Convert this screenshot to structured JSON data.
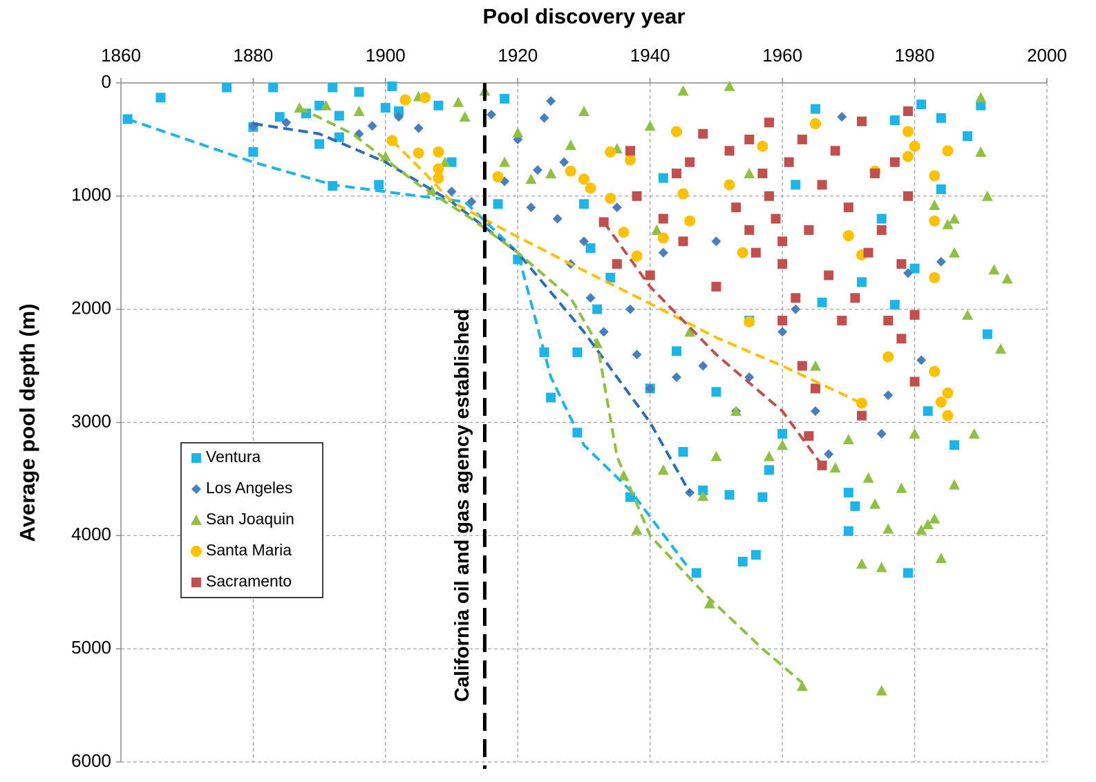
{
  "chart_data": {
    "type": "scatter",
    "xlabel": "Pool discovery year",
    "ylabel": "Average pool depth (m)",
    "xlim": [
      1860,
      2000
    ],
    "xticks": [
      1860,
      1880,
      1900,
      1920,
      1940,
      1960,
      1980,
      2000
    ],
    "ylim": [
      0,
      6000
    ],
    "yticks": [
      0,
      1000,
      2000,
      3000,
      4000,
      5000,
      6000
    ],
    "y_inverted": true,
    "x_axis_position": "top",
    "grid": true,
    "legend": "left",
    "annotation": {
      "text": "California oil and gas agency established",
      "x": 1915
    },
    "series": [
      {
        "name": "Ventura",
        "color": "#1fb4e8",
        "marker": "square",
        "x": [
          1861,
          1866,
          1876,
          1880,
          1880,
          1883,
          1884,
          1888,
          1890,
          1890,
          1892,
          1892,
          1893,
          1893,
          1896,
          1899,
          1900,
          1901,
          1902,
          1908,
          1910,
          1917,
          1918,
          1920,
          1924,
          1925,
          1929,
          1929,
          1930,
          1931,
          1932,
          1934,
          1937,
          1942,
          1944,
          1945,
          1947,
          1948,
          1950,
          1952,
          1954,
          1956,
          1957,
          1958,
          1960,
          1965,
          1966,
          1970,
          1970,
          1971,
          1972,
          1975,
          1977,
          1979,
          1980,
          1981,
          1982,
          1984,
          1984,
          1986,
          1988,
          1990,
          1991,
          1977,
          1962,
          1955,
          1940
        ],
        "values": [
          320,
          130,
          40,
          390,
          610,
          40,
          300,
          270,
          200,
          540,
          40,
          910,
          290,
          480,
          80,
          900,
          220,
          30,
          250,
          200,
          700,
          1070,
          140,
          1560,
          2380,
          2780,
          3090,
          2380,
          1070,
          1460,
          2000,
          1720,
          3660,
          840,
          2370,
          3260,
          4330,
          3600,
          2730,
          3640,
          4230,
          4170,
          3660,
          3420,
          3100,
          230,
          1940,
          3620,
          3960,
          3740,
          1760,
          1200,
          1960,
          4330,
          1640,
          190,
          2900,
          310,
          940,
          3200,
          470,
          200,
          2220,
          330,
          900,
          2100,
          2700
        ]
      },
      {
        "name": "Los Angeles",
        "color": "#4a7ebb",
        "marker": "diamond",
        "x": [
          1880,
          1885,
          1896,
          1898,
          1902,
          1905,
          1910,
          1913,
          1916,
          1918,
          1920,
          1922,
          1923,
          1924,
          1925,
          1926,
          1927,
          1928,
          1930,
          1931,
          1933,
          1935,
          1937,
          1938,
          1940,
          1942,
          1944,
          1946,
          1948,
          1950,
          1953,
          1955,
          1960,
          1962,
          1965,
          1967,
          1969,
          1975,
          1976,
          1984,
          1981,
          1979
        ],
        "values": [
          380,
          350,
          450,
          380,
          300,
          400,
          960,
          1050,
          280,
          870,
          500,
          1100,
          770,
          310,
          160,
          1200,
          700,
          1600,
          1400,
          1900,
          2200,
          1100,
          2000,
          2400,
          2700,
          1500,
          2600,
          3620,
          2500,
          1400,
          2900,
          2600,
          2200,
          2000,
          2900,
          3280,
          300,
          3100,
          2760,
          1580,
          2450,
          1680
        ]
      },
      {
        "name": "San Joaquin",
        "color": "#8fc045",
        "marker": "triangle",
        "x": [
          1887,
          1891,
          1896,
          1900,
          1905,
          1907,
          1909,
          1911,
          1912,
          1915,
          1918,
          1920,
          1922,
          1925,
          1928,
          1930,
          1932,
          1935,
          1936,
          1938,
          1940,
          1941,
          1942,
          1945,
          1946,
          1948,
          1949,
          1950,
          1952,
          1953,
          1955,
          1958,
          1960,
          1963,
          1965,
          1968,
          1970,
          1972,
          1973,
          1974,
          1975,
          1975,
          1976,
          1978,
          1980,
          1981,
          1982,
          1983,
          1984,
          1985,
          1986,
          1988,
          1989,
          1990,
          1991,
          1992,
          1993,
          1994,
          1983,
          1986,
          1990,
          1986
        ],
        "values": [
          220,
          200,
          250,
          650,
          120,
          950,
          700,
          170,
          300,
          70,
          700,
          440,
          850,
          800,
          550,
          250,
          2300,
          580,
          3470,
          3950,
          380,
          1300,
          3420,
          70,
          2200,
          3650,
          4600,
          3300,
          30,
          2900,
          800,
          3300,
          3200,
          5330,
          2500,
          3400,
          3150,
          4250,
          3490,
          3720,
          4280,
          5370,
          3940,
          3580,
          3100,
          3950,
          3900,
          3850,
          4200,
          1250,
          3550,
          2050,
          3100,
          130,
          1000,
          1650,
          2350,
          1730,
          1080,
          1500,
          610,
          1200
        ]
      },
      {
        "name": "Santa Maria",
        "color": "#ffc000",
        "marker": "circle",
        "x": [
          1903,
          1905,
          1906,
          1908,
          1901,
          1908,
          1908,
          1917,
          1928,
          1930,
          1931,
          1934,
          1934,
          1936,
          1937,
          1938,
          1942,
          1944,
          1945,
          1946,
          1952,
          1954,
          1955,
          1957,
          1965,
          1970,
          1972,
          1972,
          1974,
          1976,
          1979,
          1980,
          1983,
          1983,
          1983,
          1983,
          1984,
          1985,
          1985,
          1985,
          1979
        ],
        "values": [
          150,
          620,
          130,
          610,
          510,
          760,
          840,
          830,
          780,
          850,
          930,
          610,
          1020,
          1320,
          680,
          1530,
          1370,
          430,
          980,
          1220,
          900,
          1500,
          2110,
          560,
          360,
          1350,
          1520,
          2830,
          780,
          2420,
          430,
          560,
          820,
          1220,
          1720,
          2550,
          2820,
          600,
          2740,
          2940,
          650
        ]
      },
      {
        "name": "Sacramento",
        "color": "#c0504d",
        "marker": "square",
        "x": [
          1933,
          1935,
          1937,
          1938,
          1940,
          1942,
          1944,
          1945,
          1946,
          1948,
          1950,
          1952,
          1953,
          1955,
          1956,
          1957,
          1958,
          1959,
          1960,
          1960,
          1961,
          1962,
          1963,
          1963,
          1964,
          1965,
          1966,
          1966,
          1967,
          1968,
          1969,
          1970,
          1971,
          1972,
          1972,
          1973,
          1974,
          1975,
          1976,
          1977,
          1978,
          1978,
          1979,
          1979,
          1980,
          1980,
          1964,
          1960,
          1958,
          1955
        ],
        "values": [
          1230,
          1600,
          600,
          1000,
          1700,
          1200,
          800,
          1400,
          700,
          450,
          1800,
          600,
          1100,
          500,
          1500,
          800,
          350,
          1200,
          1600,
          2100,
          700,
          1900,
          500,
          2500,
          1300,
          2700,
          3380,
          900,
          1700,
          600,
          2100,
          1100,
          1900,
          340,
          2940,
          1500,
          800,
          1300,
          2100,
          700,
          1600,
          2260,
          250,
          1000,
          2050,
          2640,
          3120,
          1400,
          1000,
          1300
        ]
      }
    ],
    "trend_lines": [
      {
        "color": "#1fb4e8",
        "x": [
          1861,
          1880,
          1892,
          1905,
          1912,
          1920,
          1925,
          1930,
          1937,
          1946
        ],
        "values": [
          320,
          700,
          900,
          1000,
          1050,
          1500,
          2600,
          3200,
          3600,
          4300
        ]
      },
      {
        "color": "#2e6db4",
        "x": [
          1880,
          1890,
          1900,
          1910,
          1920,
          1930,
          1940,
          1946
        ],
        "values": [
          360,
          450,
          700,
          1050,
          1500,
          2200,
          3000,
          3620
        ]
      },
      {
        "color": "#8fc045",
        "x": [
          1887,
          1895,
          1905,
          1913,
          1920,
          1928,
          1932,
          1935,
          1940,
          1948,
          1957,
          1963
        ],
        "values": [
          220,
          450,
          900,
          1200,
          1500,
          1900,
          2300,
          3300,
          4000,
          4500,
          5000,
          5300
        ]
      },
      {
        "color": "#ffc000",
        "x": [
          1901,
          1906,
          1910,
          1918,
          1928,
          1940,
          1950,
          1960,
          1972
        ],
        "values": [
          510,
          800,
          1050,
          1300,
          1600,
          1950,
          2250,
          2500,
          2830
        ]
      },
      {
        "color": "#c0504d",
        "x": [
          1933,
          1940,
          1950,
          1960,
          1966
        ],
        "values": [
          1230,
          1800,
          2400,
          2900,
          3380
        ]
      }
    ]
  }
}
